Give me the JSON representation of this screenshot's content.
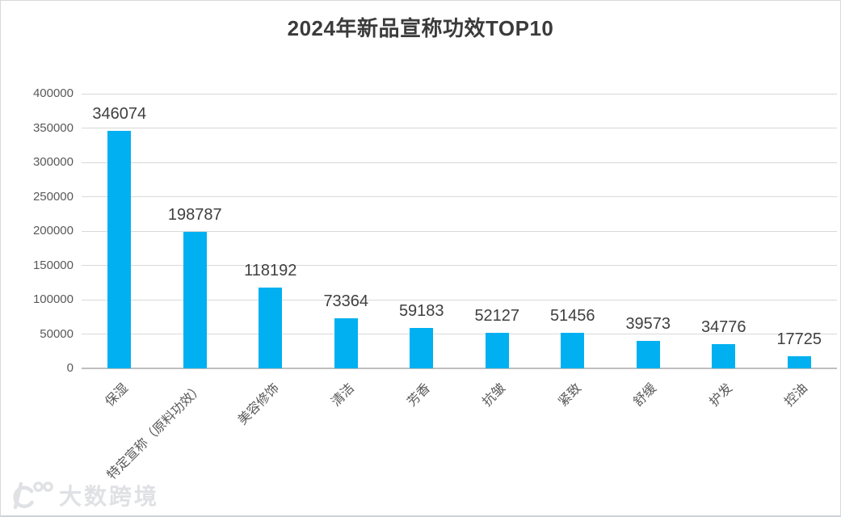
{
  "title": "2024年新品宣称功效TOP10",
  "watermark": {
    "text": "大数跨境",
    "logo_icon": "loop-100-logo-icon"
  },
  "chart_data": {
    "type": "bar",
    "title": "2024年新品宣称功效TOP10",
    "categories": [
      "保湿",
      "特定宣称（原料功效）",
      "美容修饰",
      "清洁",
      "芳香",
      "抗皱",
      "紧致",
      "舒缓",
      "护发",
      "控油"
    ],
    "values": [
      346074,
      198787,
      118192,
      73364,
      59183,
      52127,
      51456,
      39573,
      34776,
      17725
    ],
    "data_labels": [
      "346074",
      "198787",
      "118192",
      "73364",
      "59183",
      "52127",
      "51456",
      "39573",
      "34776",
      "17725"
    ],
    "xlabel": "",
    "ylabel": "",
    "ylim": [
      0,
      400000
    ],
    "ytick_interval": 50000,
    "yticks": [
      400000,
      350000,
      300000,
      250000,
      200000,
      150000,
      100000,
      50000,
      0
    ],
    "grid": true,
    "legend": false,
    "bar_color": "#00b0f0",
    "gridline_color": "#d9d9d9",
    "axis_color": "#bfbfbf",
    "title_color": "#3b3b3b",
    "label_color": "#404040",
    "tick_color": "#595959"
  }
}
